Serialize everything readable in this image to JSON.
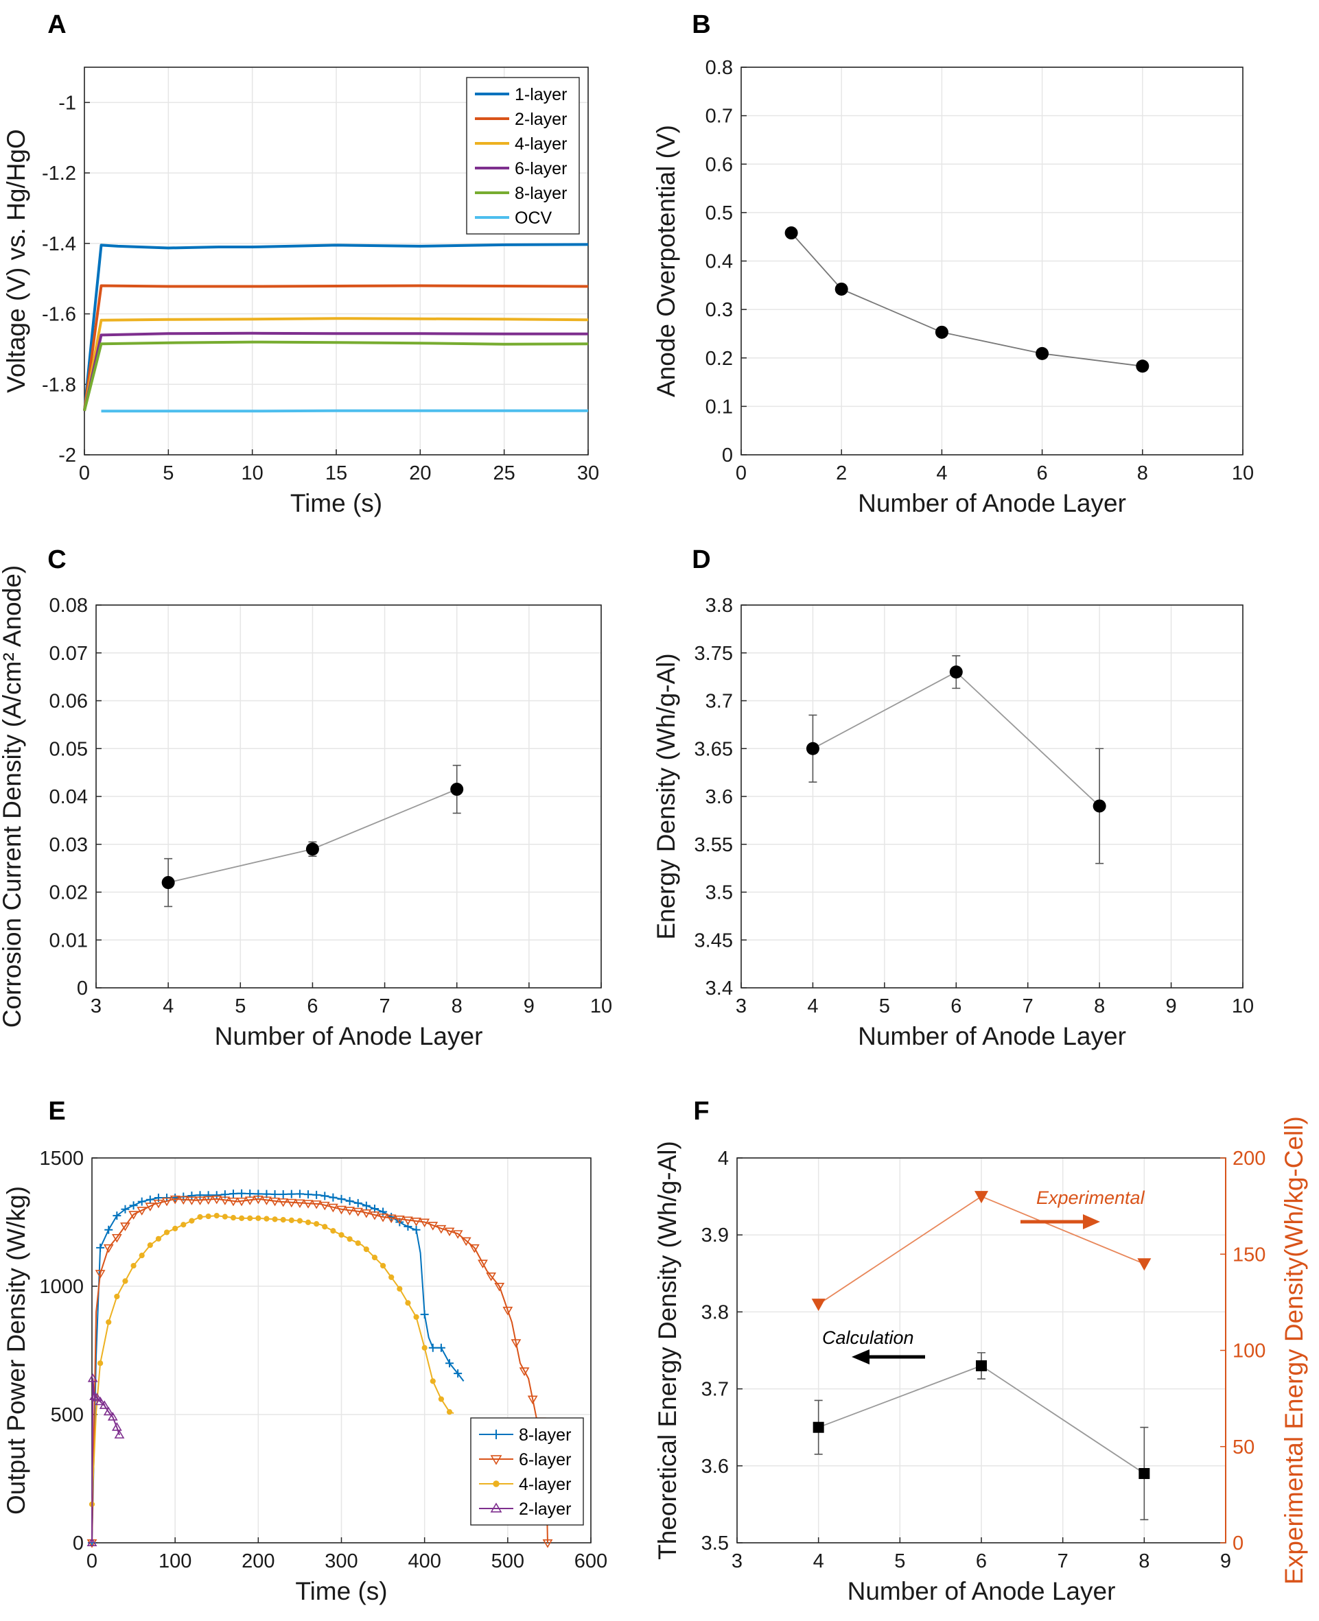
{
  "chart_data": [
    {
      "panel": "A",
      "type": "line",
      "xlabel": "Time (s)",
      "ylabel": "Voltage (V) vs. Hg/HgO",
      "xlim": [
        0,
        30
      ],
      "ylim": [
        -2,
        -0.9
      ],
      "xticks": [
        0,
        5,
        10,
        15,
        20,
        25,
        30
      ],
      "yticks": [
        -2,
        -1.8,
        -1.6,
        -1.4,
        -1.2,
        -1
      ],
      "legend_position": "top-right",
      "series": [
        {
          "name": "1-layer",
          "color": "#0072BD",
          "x": [
            0,
            1,
            2,
            5,
            8,
            10,
            15,
            20,
            25,
            30
          ],
          "y": [
            -1.875,
            -1.405,
            -1.408,
            -1.413,
            -1.41,
            -1.41,
            -1.405,
            -1.408,
            -1.404,
            -1.403
          ]
        },
        {
          "name": "2-layer",
          "color": "#D95319",
          "x": [
            0,
            1,
            5,
            10,
            15,
            20,
            25,
            30
          ],
          "y": [
            -1.875,
            -1.52,
            -1.522,
            -1.522,
            -1.521,
            -1.52,
            -1.521,
            -1.522
          ]
        },
        {
          "name": "4-layer",
          "color": "#EDB120",
          "x": [
            0,
            1,
            5,
            10,
            15,
            20,
            25,
            30
          ],
          "y": [
            -1.875,
            -1.618,
            -1.616,
            -1.615,
            -1.613,
            -1.614,
            -1.615,
            -1.617
          ]
        },
        {
          "name": "6-layer",
          "color": "#7E2F8E",
          "x": [
            0,
            1,
            5,
            10,
            15,
            20,
            25,
            30
          ],
          "y": [
            -1.875,
            -1.66,
            -1.656,
            -1.655,
            -1.656,
            -1.656,
            -1.657,
            -1.657
          ]
        },
        {
          "name": "8-layer",
          "color": "#77AC30",
          "x": [
            0,
            1,
            5,
            10,
            15,
            20,
            25,
            30
          ],
          "y": [
            -1.875,
            -1.685,
            -1.682,
            -1.68,
            -1.681,
            -1.683,
            -1.686,
            -1.685
          ]
        },
        {
          "name": "OCV",
          "color": "#4DBEEE",
          "x": [
            1,
            5,
            10,
            15,
            20,
            25,
            30
          ],
          "y": [
            -1.876,
            -1.876,
            -1.876,
            -1.875,
            -1.875,
            -1.875,
            -1.875
          ]
        }
      ]
    },
    {
      "panel": "B",
      "type": "scatter",
      "xlabel": "Number of Anode Layer",
      "ylabel": "Anode Overpotential (V)",
      "xlim": [
        0,
        10
      ],
      "ylim": [
        0,
        0.8
      ],
      "xticks": [
        0,
        2,
        4,
        6,
        8,
        10
      ],
      "yticks": [
        0,
        0.1,
        0.2,
        0.3,
        0.4,
        0.5,
        0.6,
        0.7,
        0.8
      ],
      "x": [
        1,
        2,
        4,
        6,
        8
      ],
      "y": [
        0.458,
        0.342,
        0.253,
        0.209,
        0.183
      ]
    },
    {
      "panel": "C",
      "type": "scatter",
      "xlabel": "Number of Anode Layer",
      "ylabel": "Corrosion Current Density (A/cm² Anode)",
      "xlim": [
        3,
        10
      ],
      "ylim": [
        0,
        0.08
      ],
      "xticks": [
        3,
        4,
        5,
        6,
        7,
        8,
        9,
        10
      ],
      "yticks": [
        0,
        0.01,
        0.02,
        0.03,
        0.04,
        0.05,
        0.06,
        0.07,
        0.08
      ],
      "x": [
        4,
        6,
        8
      ],
      "y": [
        0.022,
        0.029,
        0.0415
      ],
      "err": [
        0.005,
        0.0015,
        0.005
      ]
    },
    {
      "panel": "D",
      "type": "scatter",
      "xlabel": "Number of Anode Layer",
      "ylabel": "Energy Density (Wh/g-Al)",
      "xlim": [
        3,
        10
      ],
      "ylim": [
        3.4,
        3.8
      ],
      "xticks": [
        3,
        4,
        5,
        6,
        7,
        8,
        9,
        10
      ],
      "yticks": [
        3.4,
        3.45,
        3.5,
        3.55,
        3.6,
        3.65,
        3.7,
        3.75,
        3.8
      ],
      "x": [
        4,
        6,
        8
      ],
      "y": [
        3.65,
        3.73,
        3.59
      ],
      "err": [
        0.035,
        0.017,
        0.06
      ]
    },
    {
      "panel": "E",
      "type": "line",
      "xlabel": "Time (s)",
      "ylabel": "Output Power Density (W/kg)",
      "xlim": [
        0,
        600
      ],
      "ylim": [
        0,
        1500
      ],
      "xticks": [
        0,
        100,
        200,
        300,
        400,
        500,
        600
      ],
      "yticks": [
        0,
        500,
        1000,
        1500
      ],
      "legend_position": "bottom-right",
      "series": [
        {
          "name": "8-layer",
          "color": "#0072BD",
          "marker": "plus",
          "x": [
            0,
            5,
            10,
            20,
            30,
            40,
            60,
            80,
            100,
            125,
            150,
            175,
            200,
            225,
            250,
            275,
            300,
            325,
            350,
            375,
            385,
            390,
            395,
            400,
            405,
            410,
            420,
            430,
            440,
            447
          ],
          "y": [
            0,
            730,
            1150,
            1220,
            1275,
            1300,
            1330,
            1345,
            1345,
            1355,
            1355,
            1362,
            1360,
            1358,
            1360,
            1355,
            1340,
            1320,
            1290,
            1240,
            1225,
            1220,
            1130,
            890,
            800,
            760,
            760,
            700,
            660,
            630
          ]
        },
        {
          "name": "6-layer",
          "color": "#D95319",
          "marker": "triangle-down",
          "x": [
            0,
            5,
            10,
            20,
            30,
            50,
            75,
            100,
            125,
            150,
            175,
            200,
            225,
            250,
            275,
            300,
            325,
            350,
            375,
            400,
            420,
            440,
            460,
            475,
            490,
            505,
            515,
            525,
            535,
            545,
            548
          ],
          "y": [
            0,
            900,
            1050,
            1150,
            1190,
            1280,
            1320,
            1340,
            1335,
            1340,
            1330,
            1340,
            1330,
            1325,
            1320,
            1300,
            1290,
            1270,
            1260,
            1250,
            1225,
            1205,
            1150,
            1060,
            1000,
            860,
            700,
            640,
            480,
            470,
            0
          ]
        },
        {
          "name": "4-layer",
          "color": "#EDB120",
          "marker": "star",
          "x": [
            0,
            5,
            10,
            20,
            30,
            50,
            70,
            90,
            110,
            130,
            150,
            175,
            200,
            225,
            250,
            275,
            300,
            325,
            350,
            370,
            390,
            400,
            410,
            420,
            430,
            435
          ],
          "y": [
            150,
            510,
            700,
            860,
            960,
            1080,
            1160,
            1210,
            1240,
            1270,
            1275,
            1265,
            1265,
            1260,
            1255,
            1240,
            1200,
            1160,
            1080,
            990,
            880,
            760,
            630,
            560,
            510,
            505
          ]
        },
        {
          "name": "2-layer",
          "color": "#7E2F8E",
          "marker": "triangle-up",
          "x": [
            0,
            1,
            3,
            6,
            10,
            15,
            20,
            25,
            30,
            33
          ],
          "y": [
            0,
            640,
            570,
            565,
            550,
            535,
            510,
            490,
            450,
            420
          ]
        }
      ]
    },
    {
      "panel": "F",
      "type": "scatter",
      "xlabel": "Number of Anode Layer",
      "ylabel": "Theoretical Energy Density (Wh/g-Al)",
      "ylabel_right": "Experimental Energy Density(Wh/kg-Cell)",
      "xlim": [
        3,
        9
      ],
      "ylim": [
        3.5,
        4
      ],
      "ylim_right": [
        0,
        200
      ],
      "xticks": [
        3,
        4,
        5,
        6,
        7,
        8,
        9
      ],
      "yticks": [
        3.5,
        3.6,
        3.7,
        3.8,
        3.9,
        4
      ],
      "yticks_right": [
        0,
        50,
        100,
        150,
        200
      ],
      "series": [
        {
          "name": "Calculation",
          "axis": "left",
          "color": "#000000",
          "marker": "square",
          "x": [
            4,
            6,
            8
          ],
          "y": [
            3.65,
            3.73,
            3.59
          ],
          "err": [
            0.035,
            0.017,
            0.06
          ]
        },
        {
          "name": "Experimental",
          "axis": "right",
          "color": "#D95319",
          "marker": "triangle-down",
          "x": [
            4,
            6,
            8
          ],
          "y": [
            124,
            180,
            145
          ]
        }
      ],
      "annotations": [
        "Calculation",
        "Experimental"
      ]
    }
  ]
}
